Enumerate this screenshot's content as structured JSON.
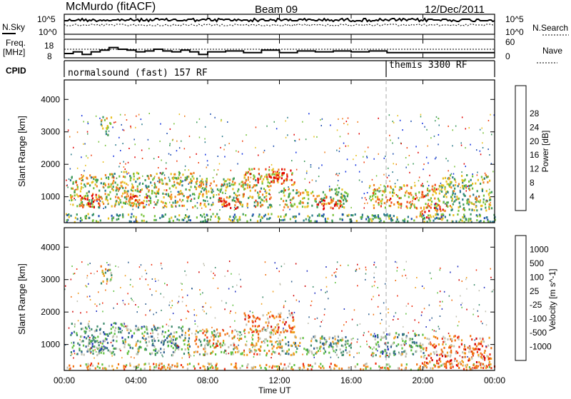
{
  "header": {
    "station": "McMurdo (fitACF)",
    "beam": "Beam 09",
    "date": "12/Dec/2011"
  },
  "labels": {
    "nsky": "N.Sky",
    "nsky_tick_hi": "10^5",
    "nsky_tick_lo": "10^0",
    "freq": "Freq.",
    "mhz": "[MHz]",
    "freq_tick_hi": "18",
    "freq_tick_lo": "8",
    "cpid": "CPID",
    "nsearch": "N.Search",
    "nsearch_tick_hi": "10^5",
    "nsearch_tick_lo": "10^0",
    "nave": "Nave",
    "nave_tick_hi": "60",
    "nave_tick_lo": "0",
    "xlabel": "Time UT"
  },
  "chart_data": [
    {
      "type": "heatmap",
      "title": "",
      "xlabel": "Time UT",
      "ylabel": "Slant Range [km]",
      "x_ticks": [
        "00:00",
        "04:00",
        "08:00",
        "12:00",
        "16:00",
        "20:00",
        "00:00"
      ],
      "y_ticks": [
        1000,
        2000,
        3000,
        4000
      ],
      "ylim": [
        200,
        4600
      ],
      "colorbar": {
        "label": "Power [dB]",
        "ticks": [
          "4",
          "8",
          "12",
          "16",
          "20",
          "24",
          "28"
        ],
        "colors": [
          "#1030e0",
          "#1f4fb0",
          "#2a7a8a",
          "#3c9a5a",
          "#77c23a",
          "#e8c020",
          "#f08020",
          "#f04010",
          "#e00000"
        ]
      },
      "blobs": [
        {
          "t0": 0.3,
          "t1": 2.5,
          "r0": 700,
          "r1": 1700,
          "level": 0.55
        },
        {
          "t0": 0.8,
          "t1": 2.0,
          "r0": 700,
          "r1": 1100,
          "level": 0.85
        },
        {
          "t0": 2.0,
          "t1": 2.6,
          "r0": 2900,
          "r1": 3500,
          "level": 0.5
        },
        {
          "t0": 2.5,
          "t1": 7.2,
          "r0": 700,
          "r1": 1800,
          "level": 0.55
        },
        {
          "t0": 3.5,
          "t1": 4.6,
          "r0": 700,
          "r1": 1100,
          "level": 0.8
        },
        {
          "t0": 7.2,
          "t1": 11.5,
          "r0": 700,
          "r1": 1600,
          "level": 0.55
        },
        {
          "t0": 8.6,
          "t1": 9.7,
          "r0": 650,
          "r1": 1000,
          "level": 0.9
        },
        {
          "t0": 10.0,
          "t1": 12.8,
          "r0": 1400,
          "r1": 1900,
          "level": 0.7
        },
        {
          "t0": 11.4,
          "t1": 12.4,
          "r0": 1500,
          "r1": 1800,
          "level": 0.9
        },
        {
          "t0": 12.0,
          "t1": 15.8,
          "r0": 700,
          "r1": 1300,
          "level": 0.55
        },
        {
          "t0": 14.0,
          "t1": 15.4,
          "r0": 650,
          "r1": 950,
          "level": 0.9
        },
        {
          "t0": 17.0,
          "t1": 21.0,
          "r0": 650,
          "r1": 1400,
          "level": 0.65
        },
        {
          "t0": 19.6,
          "t1": 21.2,
          "r0": 350,
          "r1": 700,
          "level": 0.85
        },
        {
          "t0": 21.0,
          "t1": 23.8,
          "r0": 600,
          "r1": 1700,
          "level": 0.5
        },
        {
          "t0": 0.0,
          "t1": 24.0,
          "r0": 250,
          "r1": 500,
          "level": 0.4
        }
      ]
    },
    {
      "type": "heatmap",
      "title": "",
      "xlabel": "Time UT",
      "ylabel": "Slant Range [km]",
      "x_ticks": [
        "00:00",
        "04:00",
        "08:00",
        "12:00",
        "16:00",
        "20:00",
        "00:00"
      ],
      "y_ticks": [
        1000,
        2000,
        3000,
        4000
      ],
      "ylim": [
        200,
        4600
      ],
      "colorbar": {
        "label": "Velocity [m s^-1]",
        "ticks": [
          "1000",
          "500",
          "100",
          "25",
          "-25",
          "-100",
          "-500",
          "-1000"
        ],
        "colors": [
          "#2030c0",
          "#306090",
          "#3c8a6a",
          "#60c040",
          "#c0c0b0",
          "#f0a020",
          "#f07010",
          "#f03010",
          "#d00000"
        ]
      },
      "blobs": [
        {
          "t0": 0.3,
          "t1": 3.3,
          "r0": 700,
          "r1": 1700,
          "level": 0.3
        },
        {
          "t0": 2.0,
          "t1": 2.6,
          "r0": 2900,
          "r1": 3500,
          "level": 0.45
        },
        {
          "t0": 3.3,
          "t1": 7.0,
          "r0": 700,
          "r1": 1600,
          "level": 0.35
        },
        {
          "t0": 7.2,
          "t1": 12.0,
          "r0": 700,
          "r1": 1500,
          "level": 0.55
        },
        {
          "t0": 10.0,
          "t1": 12.8,
          "r0": 1400,
          "r1": 2000,
          "level": 0.7
        },
        {
          "t0": 12.0,
          "t1": 16.0,
          "r0": 700,
          "r1": 1300,
          "level": 0.4
        },
        {
          "t0": 17.0,
          "t1": 20.0,
          "r0": 650,
          "r1": 1400,
          "level": 0.35
        },
        {
          "t0": 20.0,
          "t1": 23.8,
          "r0": 300,
          "r1": 1300,
          "level": 0.7
        },
        {
          "t0": 0.0,
          "t1": 24.0,
          "r0": 250,
          "r1": 450,
          "level": 0.6
        }
      ]
    }
  ],
  "programs": [
    {
      "name": "normalsound (fast) 157 RF",
      "t0": 0.0,
      "t1": 18.0
    },
    {
      "name": "themis 3300 RF",
      "t0": 18.0,
      "t1": 24.0
    }
  ],
  "freq_series": [
    {
      "t": 0.0,
      "f": 10.5
    },
    {
      "t": 0.5,
      "f": 11.5
    },
    {
      "t": 1.0,
      "f": 10.0
    },
    {
      "t": 1.5,
      "f": 11.5
    },
    {
      "t": 2.0,
      "f": 12.5
    },
    {
      "t": 2.5,
      "f": 14.0
    },
    {
      "t": 3.0,
      "f": 13.0
    },
    {
      "t": 3.5,
      "f": 12.5
    },
    {
      "t": 4.0,
      "f": 11.5
    },
    {
      "t": 4.5,
      "f": 12.0
    },
    {
      "t": 5.0,
      "f": 13.0
    },
    {
      "t": 5.5,
      "f": 12.0
    },
    {
      "t": 6.0,
      "f": 11.5
    },
    {
      "t": 6.5,
      "f": 12.5
    },
    {
      "t": 7.0,
      "f": 11.5
    },
    {
      "t": 7.5,
      "f": 10.0
    },
    {
      "t": 8.0,
      "f": 11.5
    },
    {
      "t": 9.0,
      "f": 12.0
    },
    {
      "t": 10.0,
      "f": 11.0
    },
    {
      "t": 11.0,
      "f": 12.5
    },
    {
      "t": 12.0,
      "f": 11.0
    },
    {
      "t": 13.0,
      "f": 12.0
    },
    {
      "t": 14.0,
      "f": 11.5
    },
    {
      "t": 15.0,
      "f": 12.0
    },
    {
      "t": 16.0,
      "f": 11.5
    },
    {
      "t": 17.0,
      "f": 12.0
    },
    {
      "t": 18.0,
      "f": 11.0
    },
    {
      "t": 24.0,
      "f": 11.0
    }
  ]
}
